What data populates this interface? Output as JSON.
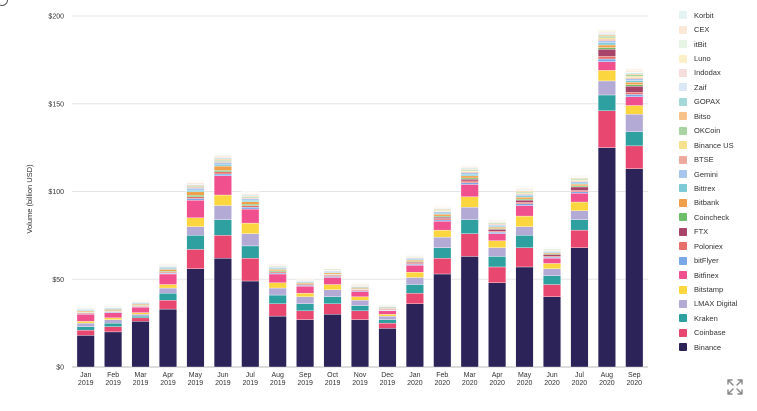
{
  "chart_data": {
    "type": "bar",
    "stacked": true,
    "title": "",
    "xlabel": "",
    "ylabel": "Volume (billion USD)",
    "ylim": [
      0,
      200
    ],
    "yticks": [
      "$0",
      "$50",
      "$100",
      "$150",
      "$200"
    ],
    "ytick_values": [
      0,
      50,
      100,
      150,
      200
    ],
    "grid": "horizontal",
    "legend_position": "right",
    "categories": [
      [
        "Jan",
        "2019"
      ],
      [
        "Feb",
        "2019"
      ],
      [
        "Mar",
        "2019"
      ],
      [
        "Apr",
        "2019"
      ],
      [
        "May",
        "2019"
      ],
      [
        "Jun",
        "2019"
      ],
      [
        "Jul",
        "2019"
      ],
      [
        "Aug",
        "2019"
      ],
      [
        "Sep",
        "2019"
      ],
      [
        "Oct",
        "2019"
      ],
      [
        "Nov",
        "2019"
      ],
      [
        "Dec",
        "2019"
      ],
      [
        "Jan",
        "2020"
      ],
      [
        "Feb",
        "2020"
      ],
      [
        "Mar",
        "2020"
      ],
      [
        "Apr",
        "2020"
      ],
      [
        "May",
        "2020"
      ],
      [
        "Jun",
        "2020"
      ],
      [
        "Jul",
        "2020"
      ],
      [
        "Aug",
        "2020"
      ],
      [
        "Sep",
        "2020"
      ]
    ],
    "series": [
      {
        "name": "Binance",
        "color": "#2c2359",
        "values": [
          18,
          20,
          26,
          33,
          56,
          62,
          49,
          29,
          27,
          30,
          27,
          22,
          36,
          53,
          63,
          48,
          57,
          40,
          68,
          125,
          113
        ]
      },
      {
        "name": "Coinbase",
        "color": "#e84870",
        "values": [
          3,
          3,
          2,
          5,
          11,
          13,
          13,
          7,
          5,
          6,
          5,
          3,
          6,
          9,
          13,
          9,
          11,
          7,
          10,
          21,
          13
        ]
      },
      {
        "name": "Kraken",
        "color": "#2ea0a0",
        "values": [
          2,
          2,
          1,
          4,
          8,
          9,
          7,
          5,
          4,
          4,
          3,
          2,
          5,
          6,
          8,
          6,
          7,
          5,
          6,
          9,
          8
        ]
      },
      {
        "name": "LMAX Digital",
        "color": "#b3abd6",
        "values": [
          2,
          2,
          1,
          3,
          5,
          8,
          7,
          4,
          4,
          4,
          3,
          2,
          4,
          6,
          7,
          5,
          5,
          4,
          5,
          8,
          10
        ]
      },
      {
        "name": "Bitstamp",
        "color": "#fbd63f",
        "values": [
          1,
          1,
          1,
          2,
          5,
          6,
          6,
          3,
          2,
          3,
          2,
          1,
          3,
          4,
          6,
          4,
          6,
          3,
          5,
          6,
          5
        ]
      },
      {
        "name": "Bitfinex",
        "color": "#f0508e",
        "values": [
          4,
          3,
          3,
          6,
          10,
          11,
          8,
          5,
          4,
          4,
          3,
          2,
          4,
          5,
          7,
          4,
          6,
          3,
          5,
          5,
          5
        ]
      },
      {
        "name": "bitFlyer",
        "color": "#7aa7e8",
        "values": [
          0.4,
          0.4,
          0.4,
          0.5,
          1,
          1,
          1,
          0.6,
          0.5,
          0.6,
          0.5,
          0.4,
          0.6,
          0.8,
          1,
          0.8,
          1,
          0.6,
          0.8,
          1.5,
          1.3
        ]
      },
      {
        "name": "Poloniex",
        "color": "#e8706a",
        "values": [
          0.5,
          0.4,
          0.4,
          0.6,
          1,
          1.2,
          1,
          0.7,
          0.6,
          0.6,
          0.5,
          0.4,
          0.6,
          0.8,
          1,
          0.6,
          0.8,
          0.5,
          0.8,
          1.5,
          1.2
        ]
      },
      {
        "name": "FTX",
        "color": "#a8436a",
        "values": [
          0,
          0,
          0,
          0,
          0,
          0,
          0,
          0,
          0,
          0.3,
          0.3,
          0.3,
          0.5,
          0.8,
          1,
          1,
          1.3,
          1,
          2,
          4,
          3.5
        ]
      },
      {
        "name": "Coincheck",
        "color": "#6dbd6a",
        "values": [
          0.4,
          0.4,
          0.4,
          0.5,
          0.8,
          0.8,
          0.7,
          0.5,
          0.4,
          0.4,
          0.4,
          0.3,
          0.4,
          0.6,
          0.7,
          0.5,
          0.6,
          0.4,
          0.6,
          1,
          0.9
        ]
      },
      {
        "name": "Bitbank",
        "color": "#f0a04a",
        "values": [
          0.6,
          0.6,
          0.6,
          1,
          2,
          2.5,
          1.5,
          0.8,
          0.6,
          0.7,
          0.6,
          0.5,
          0.8,
          1,
          1.2,
          0.8,
          1,
          0.6,
          0.9,
          1.5,
          1.3
        ]
      },
      {
        "name": "Bittrex",
        "color": "#7ccad6",
        "values": [
          0.5,
          0.5,
          0.4,
          0.7,
          1,
          1,
          0.8,
          0.6,
          0.5,
          0.5,
          0.4,
          0.4,
          0.5,
          0.7,
          0.9,
          0.6,
          0.8,
          0.5,
          0.7,
          1.2,
          1
        ]
      },
      {
        "name": "Gemini",
        "color": "#a8c5ef",
        "values": [
          0.4,
          0.4,
          0.4,
          0.5,
          1,
          1,
          0.8,
          0.5,
          0.4,
          0.5,
          0.4,
          0.3,
          0.5,
          0.7,
          0.9,
          0.6,
          0.8,
          0.5,
          0.7,
          1.2,
          1
        ]
      },
      {
        "name": "BTSE",
        "color": "#eeaa9c",
        "values": [
          0.2,
          0.2,
          0.2,
          0.3,
          0.6,
          0.6,
          0.5,
          0.3,
          0.3,
          0.3,
          0.3,
          0.2,
          0.3,
          0.4,
          0.5,
          0.4,
          0.5,
          0.3,
          0.5,
          0.8,
          0.7
        ]
      },
      {
        "name": "Binance US",
        "color": "#f7e08e",
        "values": [
          0,
          0,
          0,
          0,
          0,
          0,
          0,
          0.2,
          0.2,
          0.3,
          0.3,
          0.2,
          0.3,
          0.4,
          0.5,
          0.4,
          0.5,
          0.3,
          0.5,
          0.8,
          0.7
        ]
      },
      {
        "name": "OKCoin",
        "color": "#a7d5a2",
        "values": [
          0.3,
          0.3,
          0.3,
          0.4,
          0.6,
          0.7,
          0.6,
          0.4,
          0.3,
          0.4,
          0.3,
          0.3,
          0.4,
          0.5,
          0.6,
          0.5,
          0.6,
          0.4,
          0.6,
          1,
          0.9
        ]
      },
      {
        "name": "Bitso",
        "color": "#f7c38a",
        "values": [
          0.3,
          0.3,
          0.3,
          0.3,
          0.5,
          0.6,
          0.5,
          0.3,
          0.3,
          0.3,
          0.3,
          0.2,
          0.3,
          0.4,
          0.5,
          0.4,
          0.5,
          0.3,
          0.4,
          0.7,
          0.6
        ]
      },
      {
        "name": "GOPAX",
        "color": "#a5d8d8",
        "values": [
          0.2,
          0.2,
          0.2,
          0.3,
          0.4,
          0.5,
          0.4,
          0.2,
          0.2,
          0.2,
          0.2,
          0.2,
          0.2,
          0.3,
          0.4,
          0.3,
          0.4,
          0.2,
          0.3,
          0.5,
          0.5
        ]
      },
      {
        "name": "Zaif",
        "color": "#dbe9f7",
        "values": [
          0.2,
          0.2,
          0.2,
          0.2,
          0.4,
          0.4,
          0.3,
          0.2,
          0.2,
          0.2,
          0.2,
          0.2,
          0.2,
          0.3,
          0.3,
          0.2,
          0.3,
          0.2,
          0.3,
          0.4,
          0.4
        ]
      },
      {
        "name": "Indodax",
        "color": "#f7dcdc",
        "values": [
          0.3,
          0.3,
          0.3,
          0.4,
          0.6,
          0.7,
          0.6,
          0.4,
          0.3,
          0.3,
          0.3,
          0.2,
          0.3,
          0.4,
          0.5,
          0.4,
          0.5,
          0.3,
          0.4,
          0.7,
          0.6
        ]
      },
      {
        "name": "Luno",
        "color": "#fbf0c8",
        "values": [
          0.2,
          0.2,
          0.2,
          0.3,
          0.4,
          0.5,
          0.4,
          0.2,
          0.2,
          0.2,
          0.2,
          0.2,
          0.2,
          0.3,
          0.4,
          0.3,
          0.4,
          0.2,
          0.3,
          0.5,
          0.5
        ]
      },
      {
        "name": "itBit",
        "color": "#e6f4e4",
        "values": [
          0.2,
          0.2,
          0.2,
          0.2,
          0.3,
          0.4,
          0.3,
          0.2,
          0.2,
          0.2,
          0.2,
          0.1,
          0.2,
          0.3,
          0.3,
          0.2,
          0.3,
          0.2,
          0.3,
          0.4,
          0.4
        ]
      },
      {
        "name": "CEX",
        "color": "#fce8d6",
        "values": [
          0.2,
          0.2,
          0.2,
          0.2,
          0.3,
          0.4,
          0.3,
          0.2,
          0.2,
          0.2,
          0.2,
          0.1,
          0.2,
          0.3,
          0.3,
          0.2,
          0.3,
          0.2,
          0.3,
          0.4,
          0.4
        ]
      },
      {
        "name": "Korbit",
        "color": "#e4f3f3",
        "values": [
          0.2,
          0.2,
          0.2,
          0.2,
          0.3,
          0.3,
          0.3,
          0.2,
          0.2,
          0.2,
          0.2,
          0.1,
          0.2,
          0.2,
          0.3,
          0.2,
          0.3,
          0.2,
          0.2,
          0.4,
          0.3
        ]
      }
    ]
  },
  "icons": {
    "expand": "expand-icon",
    "top_left": "circle-icon"
  }
}
